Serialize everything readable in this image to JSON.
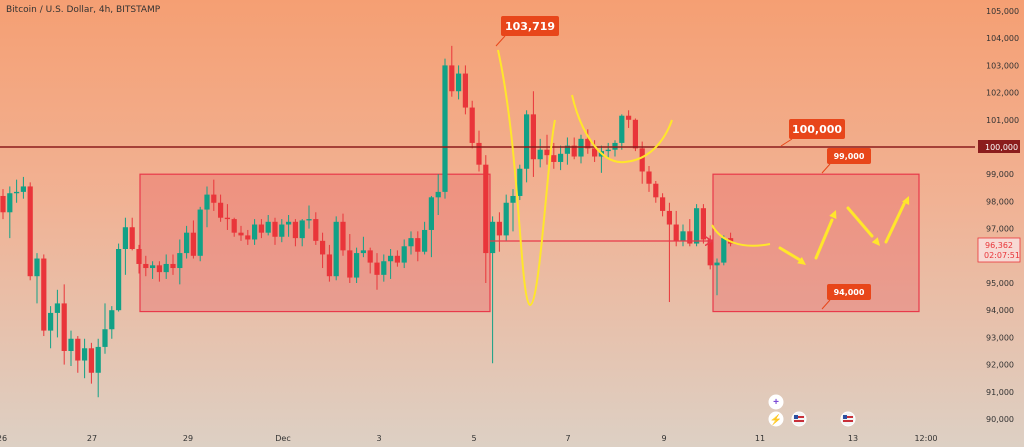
{
  "chart_data": {
    "type": "candlestick",
    "title": "Bitcoin / U.S. Dollar, 4h, BITSTAMP",
    "y_ticks": [
      "90,000",
      "91,000",
      "92,000",
      "93,000",
      "94,000",
      "95,000",
      "96,000",
      "97,000",
      "98,000",
      "99,000",
      "100,000",
      "101,000",
      "102,000",
      "103,000",
      "104,000",
      "105,000"
    ],
    "y_tick_values": [
      90000,
      91000,
      92000,
      93000,
      94000,
      95000,
      96000,
      97000,
      98000,
      99000,
      100000,
      101000,
      102000,
      103000,
      104000,
      105000
    ],
    "x_ticks": [
      "26",
      "27",
      "29",
      "Dec",
      "3",
      "5",
      "7",
      "9",
      "11",
      "13",
      "12:00"
    ],
    "x_tick_dates": [
      "2024-11-26",
      "2024-11-27",
      "2024-11-29",
      "2024-12-01",
      "2024-12-03",
      "2024-12-05",
      "2024-12-07",
      "2024-12-09",
      "2024-12-11",
      "2024-12-13",
      "2024-12-13 12:00"
    ],
    "ylim": [
      89700,
      105300
    ],
    "up_color": "#11a186",
    "down_color": "#e9353a",
    "candles": [
      [
        98200,
        98450,
        97350,
        97600
      ],
      [
        97600,
        98550,
        96650,
        98300
      ],
      [
        98300,
        98800,
        97950,
        98350
      ],
      [
        98350,
        98900,
        98100,
        98550
      ],
      [
        98550,
        98700,
        95100,
        95250
      ],
      [
        95250,
        96100,
        94250,
        95900
      ],
      [
        95900,
        96050,
        93050,
        93250
      ],
      [
        93250,
        94150,
        92600,
        93900
      ],
      [
        93900,
        94750,
        93000,
        94250
      ],
      [
        94250,
        94950,
        92000,
        92500
      ],
      [
        92500,
        93250,
        91950,
        92950
      ],
      [
        92950,
        93050,
        91700,
        92150
      ],
      [
        92150,
        92950,
        91500,
        92600
      ],
      [
        92600,
        92800,
        91300,
        91700
      ],
      [
        91700,
        92950,
        90800,
        92650
      ],
      [
        92650,
        94250,
        92400,
        93300
      ],
      [
        93300,
        94150,
        92950,
        94000
      ],
      [
        94000,
        96450,
        93950,
        96250
      ],
      [
        96250,
        97400,
        95300,
        97050
      ],
      [
        97050,
        97400,
        96200,
        96250
      ],
      [
        96250,
        96400,
        95350,
        95700
      ],
      [
        95700,
        96000,
        95250,
        95550
      ],
      [
        95550,
        95800,
        95150,
        95650
      ],
      [
        95650,
        95800,
        95050,
        95400
      ],
      [
        95400,
        96050,
        95150,
        95700
      ],
      [
        95700,
        96050,
        95300,
        95550
      ],
      [
        95550,
        96600,
        94950,
        96100
      ],
      [
        96100,
        97100,
        95900,
        96850
      ],
      [
        96850,
        97300,
        95900,
        96000
      ],
      [
        96000,
        97800,
        95800,
        97700
      ],
      [
        97700,
        98550,
        97050,
        98250
      ],
      [
        98250,
        98800,
        97650,
        97950
      ],
      [
        97950,
        98250,
        97250,
        97400
      ],
      [
        97400,
        97900,
        96950,
        97350
      ],
      [
        97350,
        97400,
        96700,
        96850
      ],
      [
        96850,
        97100,
        96550,
        96750
      ],
      [
        96750,
        96950,
        96400,
        96600
      ],
      [
        96600,
        97350,
        96400,
        97150
      ],
      [
        97150,
        97350,
        96650,
        96850
      ],
      [
        96850,
        97500,
        96750,
        97250
      ],
      [
        97250,
        97400,
        96400,
        96700
      ],
      [
        96700,
        97350,
        96500,
        97150
      ],
      [
        97150,
        97500,
        96700,
        97250
      ],
      [
        97250,
        97350,
        96350,
        96650
      ],
      [
        96650,
        97350,
        96350,
        97300
      ],
      [
        97300,
        97850,
        97000,
        97350
      ],
      [
        97350,
        97600,
        96400,
        96550
      ],
      [
        96550,
        96850,
        95550,
        96050
      ],
      [
        96050,
        96400,
        95050,
        95250
      ],
      [
        95250,
        97450,
        95100,
        97250
      ],
      [
        97250,
        97550,
        96000,
        96200
      ],
      [
        96200,
        96800,
        95000,
        95200
      ],
      [
        95200,
        96300,
        95000,
        96100
      ],
      [
        96100,
        96700,
        95950,
        96200
      ],
      [
        96200,
        96300,
        95350,
        95750
      ],
      [
        95750,
        96100,
        94750,
        95300
      ],
      [
        95300,
        96050,
        95050,
        95800
      ],
      [
        95800,
        96250,
        95150,
        96000
      ],
      [
        96000,
        96200,
        95600,
        95750
      ],
      [
        95750,
        96600,
        95550,
        96350
      ],
      [
        96350,
        96900,
        96050,
        96650
      ],
      [
        96650,
        96900,
        95800,
        96150
      ],
      [
        96150,
        97250,
        96050,
        96950
      ],
      [
        96950,
        98200,
        95950,
        98150
      ],
      [
        98150,
        99000,
        97500,
        98350
      ],
      [
        98350,
        103250,
        98100,
        103000
      ],
      [
        103000,
        103719,
        101850,
        102050
      ],
      [
        102050,
        103000,
        101750,
        102700
      ],
      [
        102700,
        103000,
        101200,
        101450
      ],
      [
        101450,
        101700,
        99950,
        100150
      ],
      [
        100150,
        100600,
        99100,
        99350
      ],
      [
        99350,
        99700,
        95000,
        96100
      ],
      [
        96100,
        97450,
        92050,
        97250
      ],
      [
        97250,
        97600,
        96150,
        96750
      ],
      [
        96750,
        98250,
        96550,
        97950
      ],
      [
        97950,
        98450,
        96900,
        98200
      ],
      [
        98200,
        99350,
        98050,
        99200
      ],
      [
        99200,
        101350,
        98700,
        101200
      ],
      [
        101200,
        102050,
        98900,
        99550
      ],
      [
        99550,
        100300,
        99250,
        99900
      ],
      [
        99900,
        100450,
        99350,
        99700
      ],
      [
        99700,
        100150,
        99200,
        99450
      ],
      [
        99450,
        100050,
        99150,
        99750
      ],
      [
        99750,
        100350,
        99350,
        100050
      ],
      [
        100050,
        100350,
        99550,
        99650
      ],
      [
        99650,
        100450,
        99400,
        100300
      ],
      [
        100300,
        100650,
        99750,
        99950
      ],
      [
        99950,
        100250,
        99450,
        99650
      ],
      [
        99650,
        100050,
        99050,
        99850
      ],
      [
        99850,
        100150,
        99550,
        99900
      ],
      [
        99900,
        100250,
        99650,
        100150
      ],
      [
        100150,
        101200,
        99900,
        101150
      ],
      [
        101150,
        101350,
        100700,
        101000
      ],
      [
        101000,
        101050,
        99850,
        99950
      ],
      [
        99950,
        100200,
        98650,
        99100
      ],
      [
        99100,
        99300,
        98350,
        98650
      ],
      [
        98650,
        98750,
        97950,
        98150
      ],
      [
        98150,
        98300,
        97450,
        97650
      ],
      [
        97650,
        97950,
        94300,
        97150
      ],
      [
        97150,
        97650,
        96350,
        96550
      ],
      [
        96550,
        97150,
        96350,
        96900
      ],
      [
        96900,
        97350,
        96350,
        96450
      ],
      [
        96450,
        97900,
        96350,
        97750
      ],
      [
        97750,
        97900,
        96450,
        96600
      ],
      [
        96600,
        96750,
        95500,
        95650
      ],
      [
        95650,
        95900,
        94550,
        95750
      ],
      [
        95750,
        96750,
        95650,
        96650
      ],
      [
        96650,
        96850,
        96350,
        96450
      ]
    ],
    "annotations": {
      "high_label": "103,719",
      "level_label": "100,000",
      "box_top_label": "99,000",
      "box_bottom_label": "94,000",
      "price_tag": "96,362",
      "countdown": "02:07:51",
      "level_axis_tag": "100,000",
      "support_level": 100000,
      "left_box": [
        93950,
        99000
      ],
      "right_box": [
        93950,
        99000
      ],
      "level_color": "#8b1d1d",
      "label_color": "#e8461a",
      "box_border": "#e8394a",
      "yellow": "#ffe62b"
    },
    "grid": false
  },
  "footer_icons": [
    "plus-icon",
    "lightning-icon",
    "us-flag-icon",
    "us-flag-icon"
  ]
}
